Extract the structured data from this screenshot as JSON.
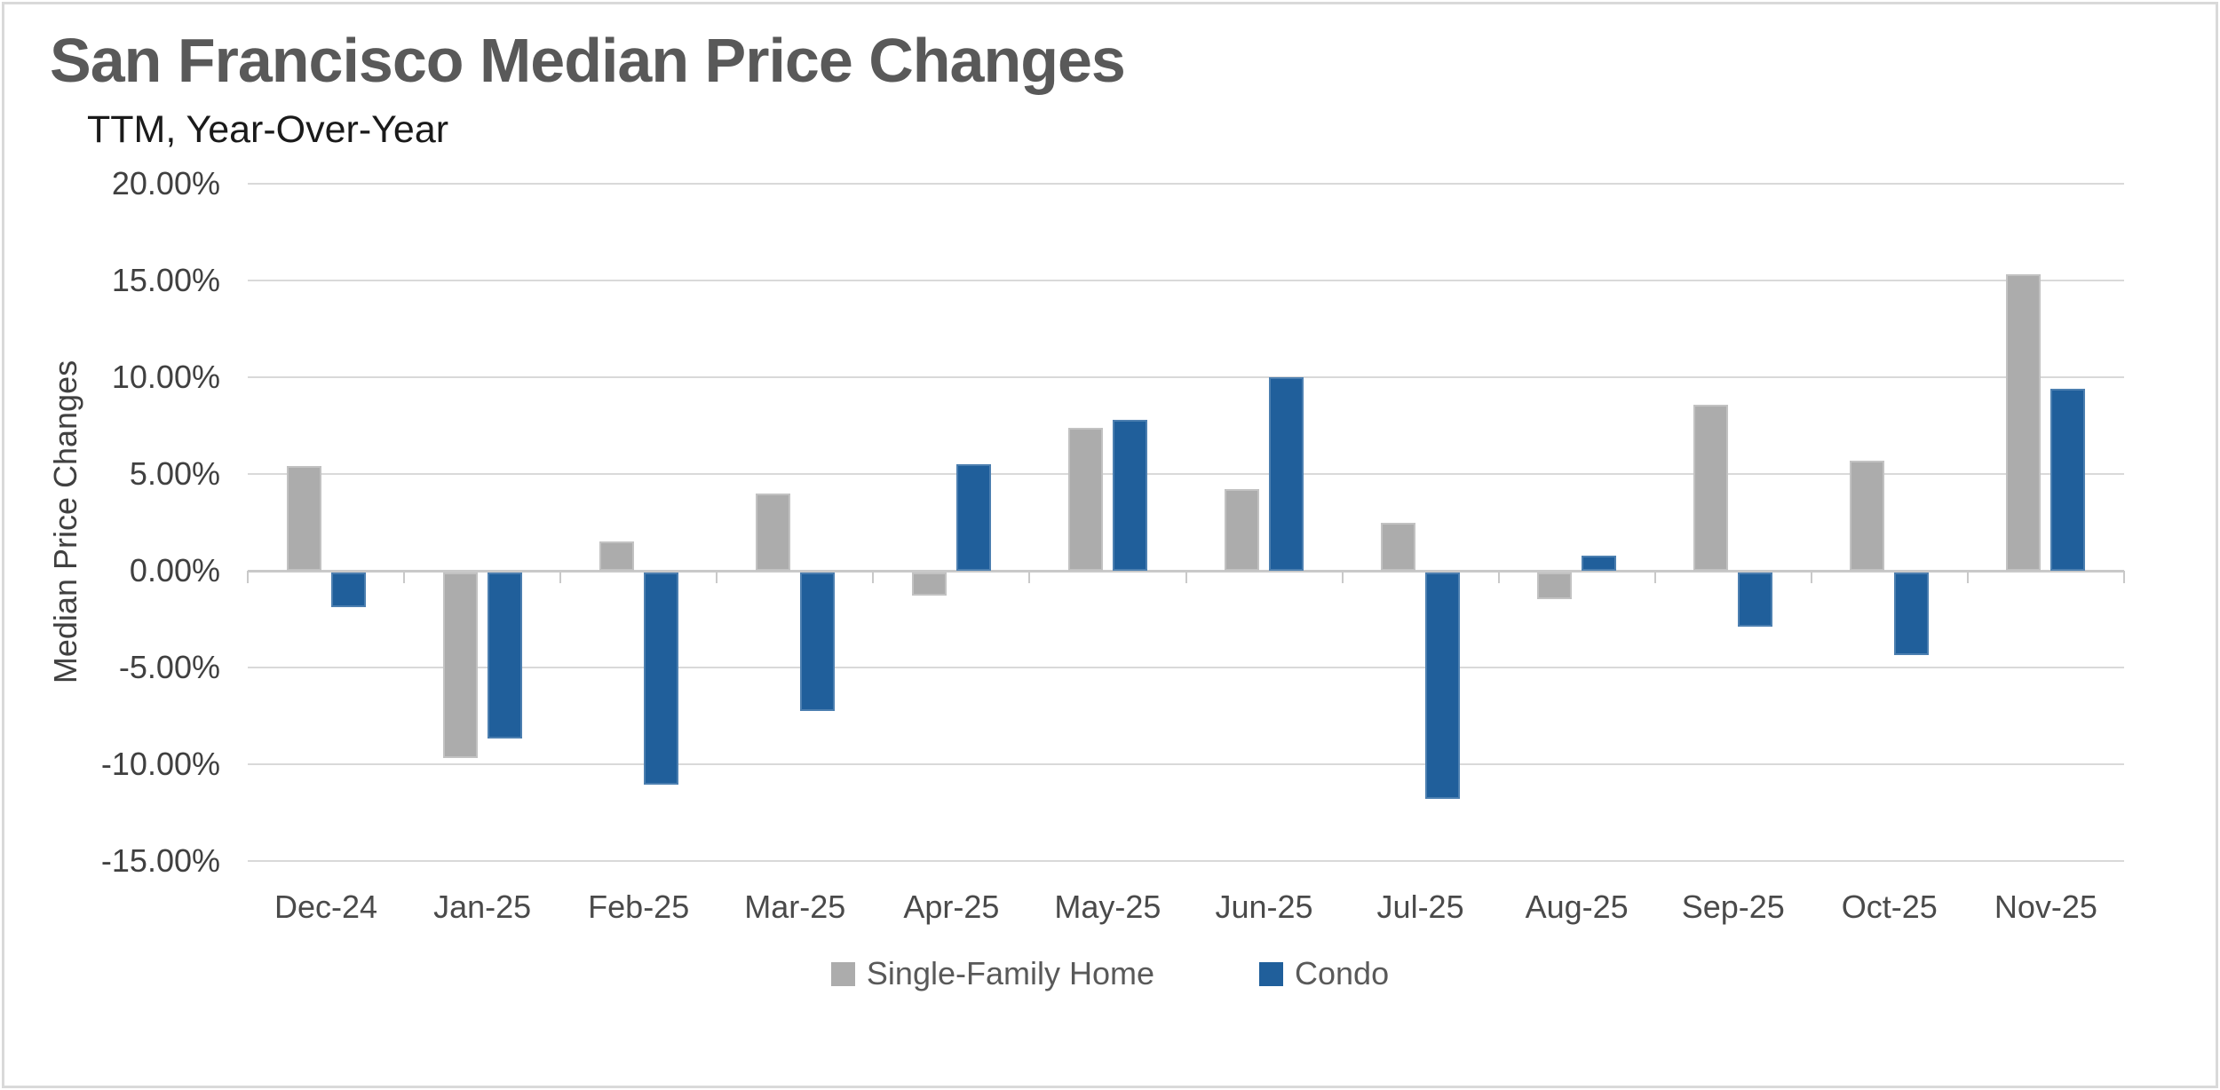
{
  "title": "San Francisco Median Price Changes",
  "subtitle": "TTM, Year-Over-Year",
  "colors": {
    "single_family_bar": "#acacac",
    "single_family_border": "#c2c2c2",
    "condo_bar": "#205f9b",
    "condo_border": "#4c7fb0",
    "gridline": "#d9d9d9",
    "zero_axis": "#c9c9c9",
    "title_text": "#595959",
    "axis_text": "#404040"
  },
  "chart_data": {
    "type": "bar",
    "title": "San Francisco Median Price Changes",
    "subtitle": "TTM, Year-Over-Year",
    "xlabel": "",
    "ylabel": "Median Price Changes",
    "ylim": [
      -15,
      20
    ],
    "ytick_step": 5,
    "yticks": [
      "20.00%",
      "15.00%",
      "10.00%",
      "5.00%",
      "0.00%",
      "-5.00%",
      "-10.00%",
      "-15.00%"
    ],
    "grid": true,
    "legend_position": "bottom-center",
    "value_unit": "percent",
    "categories": [
      "Dec-24",
      "Jan-25",
      "Feb-25",
      "Mar-25",
      "Apr-25",
      "May-25",
      "Jun-25",
      "Jul-25",
      "Aug-25",
      "Sep-25",
      "Oct-25",
      "Nov-25"
    ],
    "series": [
      {
        "name": "Single-Family Home",
        "color": "#acacac",
        "border_color": "#c2c2c2",
        "values": [
          5.4,
          -9.6,
          1.5,
          4.0,
          -1.2,
          7.4,
          4.2,
          2.5,
          -1.4,
          8.6,
          5.7,
          15.3
        ]
      },
      {
        "name": "Condo",
        "color": "#205f9b",
        "border_color": "#4c7fb0",
        "values": [
          -1.8,
          -8.6,
          -11.0,
          -7.2,
          5.5,
          7.8,
          10.0,
          -11.7,
          0.8,
          -2.8,
          -4.3,
          9.4
        ]
      }
    ]
  }
}
